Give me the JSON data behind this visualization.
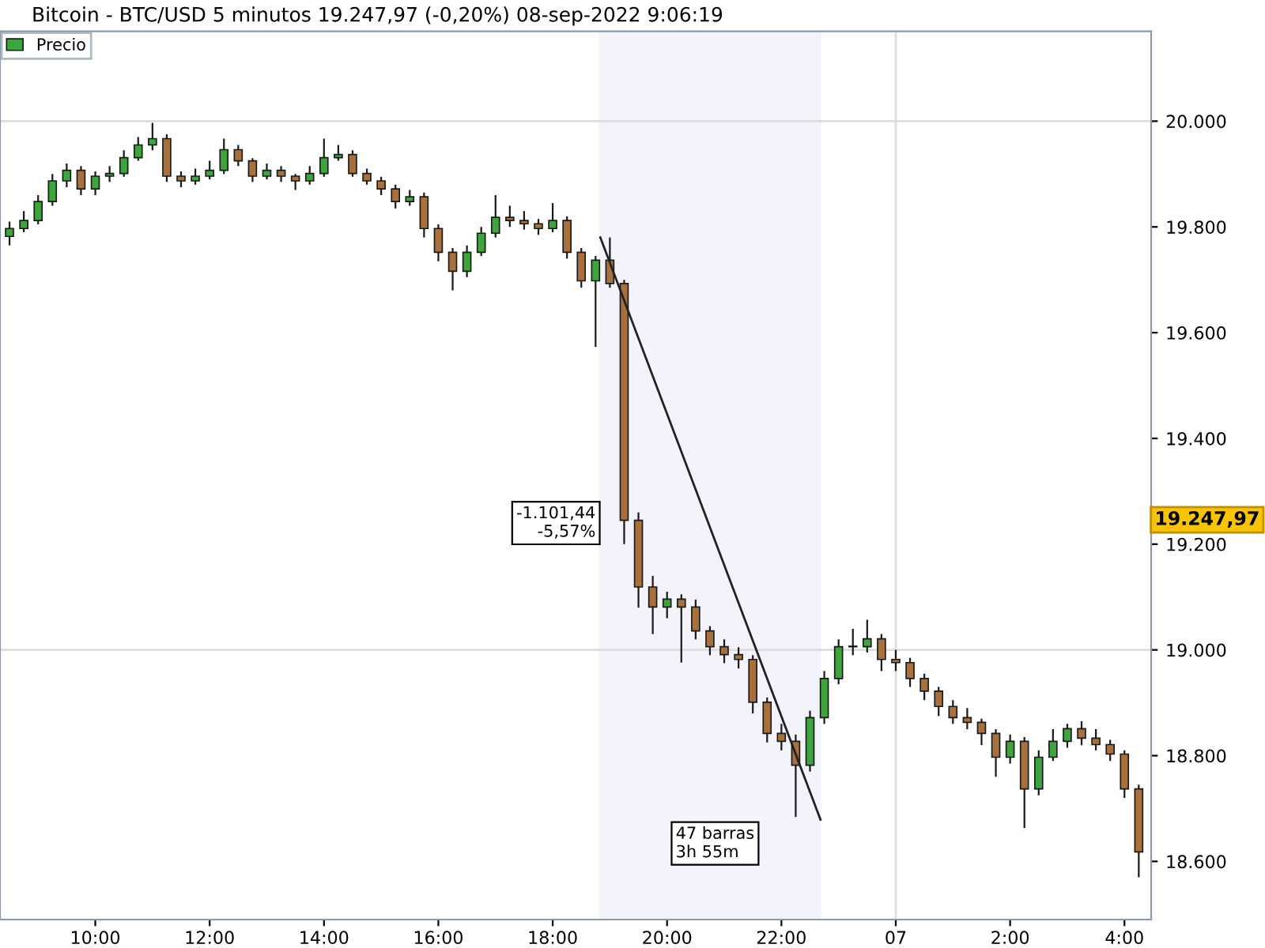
{
  "chart_data": {
    "type": "candlestick",
    "title": "Bitcoin - BTC/USD 5 minutos 19.247,97 (-0,20%) 08-sep-2022 9:06:19",
    "x": [
      "2022-09-06T08:30",
      "2022-09-06T08:45",
      "2022-09-06T09:00",
      "2022-09-06T09:15",
      "2022-09-06T09:30",
      "2022-09-06T09:45",
      "2022-09-06T10:00",
      "2022-09-06T10:15",
      "2022-09-06T10:30",
      "2022-09-06T10:45",
      "2022-09-06T11:00",
      "2022-09-06T11:15",
      "2022-09-06T11:30",
      "2022-09-06T11:45",
      "2022-09-06T12:00",
      "2022-09-06T12:15",
      "2022-09-06T12:30",
      "2022-09-06T12:45",
      "2022-09-06T13:00",
      "2022-09-06T13:15",
      "2022-09-06T13:30",
      "2022-09-06T13:45",
      "2022-09-06T14:00",
      "2022-09-06T14:15",
      "2022-09-06T14:30",
      "2022-09-06T14:45",
      "2022-09-06T15:00",
      "2022-09-06T15:15",
      "2022-09-06T15:30",
      "2022-09-06T15:45",
      "2022-09-06T16:00",
      "2022-09-06T16:15",
      "2022-09-06T16:30",
      "2022-09-06T16:45",
      "2022-09-06T17:00",
      "2022-09-06T17:15",
      "2022-09-06T17:30",
      "2022-09-06T17:45",
      "2022-09-06T18:00",
      "2022-09-06T18:15",
      "2022-09-06T18:30",
      "2022-09-06T18:45",
      "2022-09-06T19:00",
      "2022-09-06T19:15",
      "2022-09-06T19:30",
      "2022-09-06T19:45",
      "2022-09-06T20:00",
      "2022-09-06T20:15",
      "2022-09-06T20:30",
      "2022-09-06T20:45",
      "2022-09-06T21:00",
      "2022-09-06T21:15",
      "2022-09-06T21:30",
      "2022-09-06T21:45",
      "2022-09-06T22:00",
      "2022-09-06T22:15",
      "2022-09-06T22:30",
      "2022-09-06T22:45",
      "2022-09-06T23:00",
      "2022-09-06T23:15",
      "2022-09-06T23:30",
      "2022-09-06T23:45",
      "2022-09-07T00:00",
      "2022-09-07T00:15",
      "2022-09-07T00:30",
      "2022-09-07T00:45",
      "2022-09-07T01:00",
      "2022-09-07T01:15",
      "2022-09-07T01:30",
      "2022-09-07T01:45",
      "2022-09-07T02:00",
      "2022-09-07T02:15",
      "2022-09-07T02:30",
      "2022-09-07T02:45",
      "2022-09-07T03:00",
      "2022-09-07T03:15",
      "2022-09-07T03:30",
      "2022-09-07T03:45",
      "2022-09-07T04:00",
      "2022-09-07T04:15"
    ],
    "series": [
      {
        "name": "Precio",
        "color": "#3ca53c",
        "colors": [
          "#3ca53c",
          "#3ca53c",
          "#3ca53c",
          "#3ca53c",
          "#3ca53c",
          "#a8703c",
          "#3ca53c",
          "#3ca53c",
          "#3ca53c",
          "#3ca53c",
          "#3ca53c",
          "#a8703c",
          "#a8703c",
          "#3ca53c",
          "#3ca53c",
          "#3ca53c",
          "#a8703c",
          "#a8703c",
          "#3ca53c",
          "#a8703c",
          "#a8703c",
          "#3ca53c",
          "#3ca53c",
          "#3ca53c",
          "#a8703c",
          "#a8703c",
          "#a8703c",
          "#a8703c",
          "#3ca53c",
          "#a8703c",
          "#a8703c",
          "#a8703c",
          "#3ca53c",
          "#3ca53c",
          "#3ca53c",
          "#a8703c",
          "#a8703c",
          "#a8703c",
          "#3ca53c",
          "#a8703c",
          "#a8703c",
          "#3ca53c",
          "#a8703c",
          "#a8703c",
          "#a8703c",
          "#a8703c",
          "#3ca53c",
          "#a8703c",
          "#a8703c",
          "#a8703c",
          "#a8703c",
          "#a8703c",
          "#a8703c",
          "#a8703c",
          "#a8703c",
          "#a8703c",
          "#3ca53c",
          "#3ca53c",
          "#3ca53c",
          "#3ca53c",
          "#3ca53c",
          "#a8703c",
          "#a8703c",
          "#a8703c",
          "#a8703c",
          "#a8703c",
          "#a8703c",
          "#a8703c",
          "#a8703c",
          "#a8703c",
          "#3ca53c",
          "#a8703c",
          "#3ca53c",
          "#3ca53c",
          "#3ca53c",
          "#a8703c",
          "#a8703c",
          "#a8703c",
          "#a8703c",
          "#a8703c"
        ],
        "ohlc": [
          [
            19782,
            19810,
            19765,
            19797
          ],
          [
            19797,
            19830,
            19790,
            19812
          ],
          [
            19812,
            19860,
            19805,
            19848
          ],
          [
            19848,
            19900,
            19840,
            19887
          ],
          [
            19887,
            19920,
            19875,
            19907
          ],
          [
            19907,
            19915,
            19860,
            19872
          ],
          [
            19872,
            19905,
            19860,
            19896
          ],
          [
            19896,
            19915,
            19885,
            19901
          ],
          [
            19901,
            19945,
            19895,
            19931
          ],
          [
            19931,
            19970,
            19925,
            19955
          ],
          [
            19955,
            19997,
            19945,
            19967
          ],
          [
            19967,
            19975,
            19885,
            19896
          ],
          [
            19896,
            19905,
            19875,
            19887
          ],
          [
            19887,
            19910,
            19880,
            19896
          ],
          [
            19896,
            19925,
            19890,
            19907
          ],
          [
            19907,
            19967,
            19900,
            19946
          ],
          [
            19946,
            19955,
            19915,
            19925
          ],
          [
            19925,
            19930,
            19885,
            19896
          ],
          [
            19896,
            19920,
            19890,
            19907
          ],
          [
            19907,
            19915,
            19885,
            19896
          ],
          [
            19896,
            19900,
            19870,
            19887
          ],
          [
            19887,
            19915,
            19880,
            19901
          ],
          [
            19901,
            19967,
            19895,
            19931
          ],
          [
            19931,
            19955,
            19925,
            19937
          ],
          [
            19937,
            19945,
            19895,
            19901
          ],
          [
            19901,
            19910,
            19880,
            19887
          ],
          [
            19887,
            19895,
            19860,
            19872
          ],
          [
            19872,
            19880,
            19835,
            19848
          ],
          [
            19848,
            19870,
            19840,
            19857
          ],
          [
            19857,
            19865,
            19780,
            19797
          ],
          [
            19797,
            19805,
            19735,
            19752
          ],
          [
            19752,
            19760,
            19680,
            19716
          ],
          [
            19716,
            19765,
            19705,
            19752
          ],
          [
            19752,
            19800,
            19745,
            19788
          ],
          [
            19788,
            19860,
            19780,
            19818
          ],
          [
            19818,
            19840,
            19800,
            19812
          ],
          [
            19812,
            19830,
            19795,
            19806
          ],
          [
            19806,
            19815,
            19785,
            19797
          ],
          [
            19797,
            19845,
            19790,
            19812
          ],
          [
            19812,
            19820,
            19740,
            19752
          ],
          [
            19752,
            19760,
            19685,
            19698
          ],
          [
            19698,
            19745,
            19573,
            19737
          ],
          [
            19737,
            19780,
            19685,
            19693
          ],
          [
            19693,
            19700,
            19200,
            19245
          ],
          [
            19245,
            19260,
            19080,
            19119
          ],
          [
            19119,
            19140,
            19030,
            19081
          ],
          [
            19081,
            19110,
            19060,
            19096
          ],
          [
            19096,
            19105,
            18976,
            19081
          ],
          [
            19081,
            19095,
            19020,
            19036
          ],
          [
            19036,
            19045,
            18990,
            19006
          ],
          [
            19006,
            19020,
            18975,
            18991
          ],
          [
            18991,
            19005,
            18965,
            18982
          ],
          [
            18982,
            18990,
            18880,
            18901
          ],
          [
            18901,
            18910,
            18825,
            18842
          ],
          [
            18842,
            18860,
            18810,
            18827
          ],
          [
            18827,
            18840,
            18684,
            18782
          ],
          [
            18782,
            18885,
            18770,
            18872
          ],
          [
            18872,
            18960,
            18860,
            18946
          ],
          [
            18946,
            19020,
            18935,
            19006
          ],
          [
            19006,
            19040,
            18990,
            19006
          ],
          [
            19006,
            19057,
            18995,
            19021
          ],
          [
            19021,
            19030,
            18960,
            18982
          ],
          [
            18982,
            19000,
            18960,
            18976
          ],
          [
            18976,
            18985,
            18930,
            18946
          ],
          [
            18946,
            18955,
            18905,
            18922
          ],
          [
            18922,
            18930,
            18875,
            18893
          ],
          [
            18893,
            18905,
            18860,
            18872
          ],
          [
            18872,
            18890,
            18850,
            18863
          ],
          [
            18863,
            18870,
            18820,
            18842
          ],
          [
            18842,
            18850,
            18760,
            18797
          ],
          [
            18797,
            18840,
            18785,
            18827
          ],
          [
            18827,
            18835,
            18663,
            18737
          ],
          [
            18737,
            18810,
            18725,
            18797
          ],
          [
            18797,
            18850,
            18790,
            18827
          ],
          [
            18827,
            18860,
            18815,
            18851
          ],
          [
            18851,
            18865,
            18820,
            18833
          ],
          [
            18833,
            18850,
            18810,
            18821
          ],
          [
            18821,
            18830,
            18790,
            18803
          ],
          [
            18803,
            18810,
            18720,
            18737
          ],
          [
            18737,
            18745,
            18570,
            18618
          ]
        ]
      },
      {
        "type": "line",
        "color": "#222222",
        "x": [
          "2022-09-06T18:50",
          "2022-09-06T22:41"
        ],
        "values": [
          19780,
          18679
        ]
      }
    ],
    "xlim": [
      "2022-09-06T08:20",
      "2022-09-07T04:28"
    ],
    "xticks": [
      {
        "value": "2022-09-06T10:00",
        "label": "10:00"
      },
      {
        "value": "2022-09-06T12:00",
        "label": "12:00"
      },
      {
        "value": "2022-09-06T14:00",
        "label": "14:00"
      },
      {
        "value": "2022-09-06T16:00",
        "label": "16:00"
      },
      {
        "value": "2022-09-06T18:00",
        "label": "18:00"
      },
      {
        "value": "2022-09-06T20:00",
        "label": "20:00"
      },
      {
        "value": "2022-09-06T22:00",
        "label": "22:00"
      },
      {
        "value": "2022-09-07T00:00",
        "label": "07"
      },
      {
        "value": "2022-09-07T02:00",
        "label": "2:00"
      },
      {
        "value": "2022-09-07T04:00",
        "label": "4:00"
      }
    ],
    "ylim": [
      18490,
      20170
    ],
    "yticks": [
      {
        "value": 18600,
        "label": "18.600"
      },
      {
        "value": 18800,
        "label": "18.800"
      },
      {
        "value": 19000,
        "label": "19.000"
      },
      {
        "value": 19200,
        "label": "19.200"
      },
      {
        "value": 19400,
        "label": "19.400"
      },
      {
        "value": 19600,
        "label": "19.600"
      },
      {
        "value": 19800,
        "label": "19.800"
      },
      {
        "value": 20000,
        "label": "20.000"
      }
    ],
    "ref_lines": [
      {
        "axis": "y",
        "value": 20000,
        "color": "#dddddd"
      },
      {
        "axis": "y",
        "value": 19000,
        "color": "#dddddd"
      },
      {
        "axis": "x",
        "value": "2022-09-07T00:00",
        "color": "#dddddd"
      }
    ],
    "bands": [
      {
        "axis": "x",
        "from": "2022-09-06T18:48",
        "to": "2022-09-06T22:42",
        "color": "#f3f4fb"
      }
    ],
    "annotations": [
      {
        "text": "-1.101,44\n-5,57%",
        "x": "2022-09-06T18:45",
        "y": 19240
      },
      "47 barras\n3h 55m",
      "19.247,97"
    ],
    "legend": "top left",
    "grid": false
  }
}
